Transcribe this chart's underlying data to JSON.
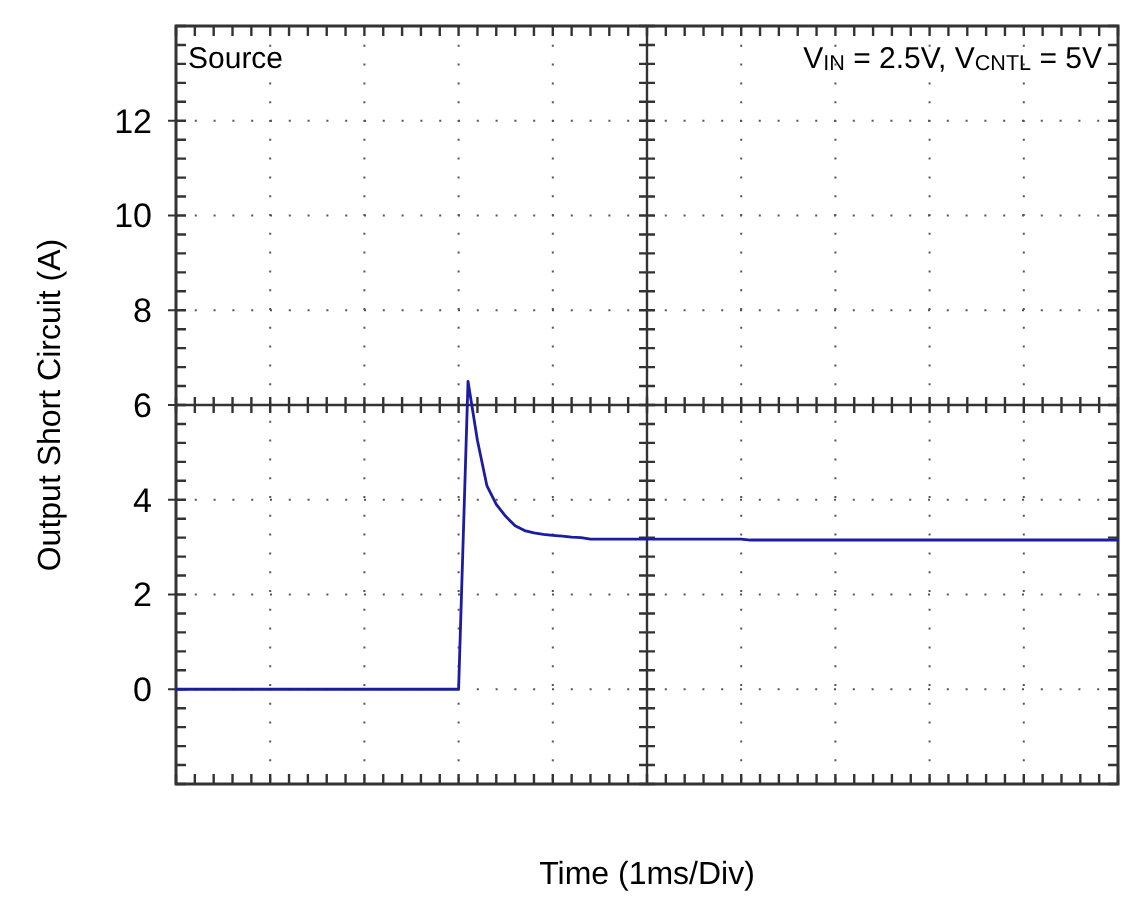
{
  "chart_data": {
    "type": "line",
    "xlabel": "Time (1ms/Div)",
    "ylabel": "Output Short Circuit (A)",
    "annotations": [
      "Source",
      "V$_{IN}$ = 2.5V, V$_{CNTL}$ = 5V"
    ],
    "categories": [
      null,
      null,
      null,
      null,
      null,
      null,
      null,
      null,
      null,
      null,
      null,
      null,
      null,
      null,
      null,
      null,
      null,
      null,
      null,
      null,
      null,
      null,
      null,
      null,
      null,
      null,
      null,
      null,
      null,
      null,
      null,
      null,
      null,
      null,
      null,
      null,
      null,
      null,
      null,
      null,
      null,
      null,
      null,
      null,
      null,
      null,
      null,
      null,
      null,
      null,
      null,
      null,
      null,
      null,
      null,
      null,
      null,
      null,
      null,
      null,
      null,
      null,
      null,
      null,
      null,
      null,
      null,
      null,
      null,
      null,
      null,
      null,
      null,
      null,
      null,
      null,
      null,
      null,
      null,
      null,
      null,
      null,
      null,
      null,
      null,
      null,
      null,
      null,
      null,
      null,
      null,
      null,
      null,
      null,
      null,
      null,
      null,
      null,
      null,
      null,
      null
    ],
    "series": [
      {
        "color": "#1c1ca0",
        "values": [
          0,
          0,
          0,
          0,
          0,
          0,
          0,
          0,
          0,
          0,
          0,
          0,
          0,
          0,
          0,
          0,
          0,
          0,
          0,
          0,
          0,
          0,
          0,
          0,
          0,
          0,
          0,
          0,
          0,
          0,
          0,
          6.5,
          5.25,
          4.3,
          3.9,
          3.65,
          3.45,
          3.35,
          3.3,
          3.27,
          3.25,
          3.23,
          3.21,
          3.2,
          3.17,
          3.17,
          3.17,
          3.17,
          3.17,
          3.17,
          3.17,
          3.17,
          3.17,
          3.17,
          3.17,
          3.17,
          3.17,
          3.17,
          3.17,
          3.17,
          3.17,
          3.15,
          3.15,
          3.15,
          3.15,
          3.15,
          3.15,
          3.15,
          3.15,
          3.15,
          3.15,
          3.15,
          3.15,
          3.15,
          3.15,
          3.15,
          3.15,
          3.15,
          3.15,
          3.15,
          3.15,
          3.15,
          3.15,
          3.15,
          3.15,
          3.15,
          3.15,
          3.15,
          3.15,
          3.15,
          3.15,
          3.15,
          3.15,
          3.15,
          3.15,
          3.15,
          3.15,
          3.15,
          3.15,
          3.15,
          3.15
        ]
      }
    ],
    "ylim": [
      -2,
      14
    ],
    "yticks": [
      0,
      2,
      4,
      6,
      8,
      10,
      12
    ],
    "grid": true,
    "marker": "none",
    "line_style": "solid"
  }
}
